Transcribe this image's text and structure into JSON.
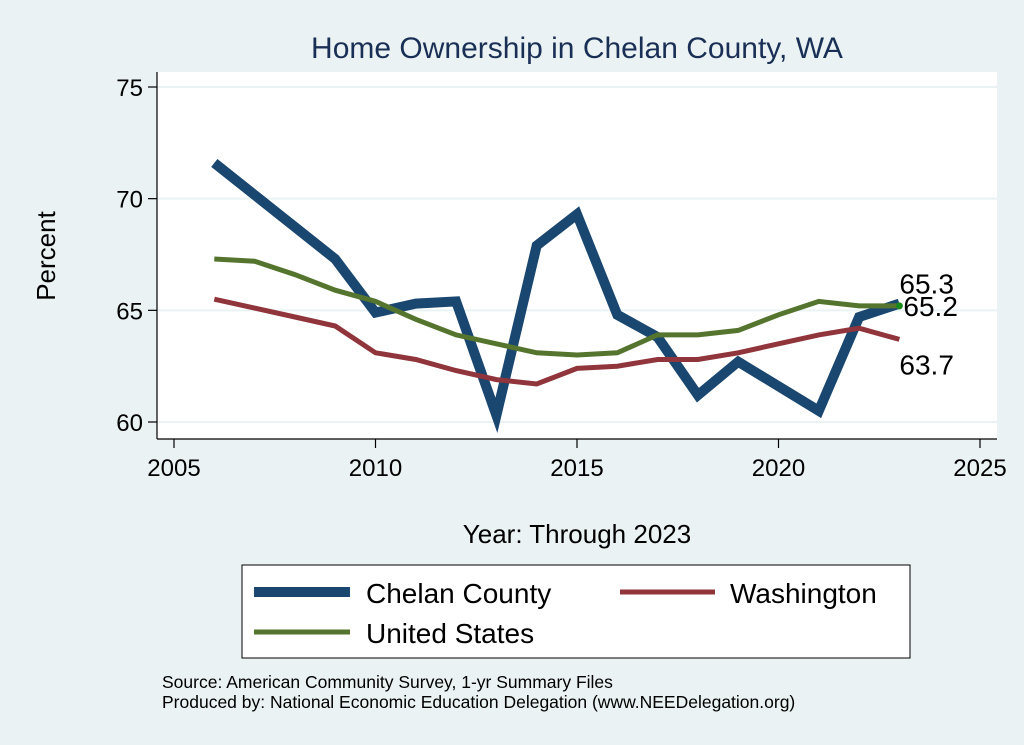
{
  "chart_data": {
    "type": "line",
    "title": "Home Ownership in Chelan County, WA",
    "xlabel": "Year: Through 2023",
    "ylabel": "Percent",
    "xlim": [
      2005,
      2025
    ],
    "ylim": [
      60,
      75
    ],
    "xticks": [
      2005,
      2010,
      2015,
      2020,
      2025
    ],
    "yticks": [
      60,
      65,
      70,
      75
    ],
    "xtick_labels": [
      "2005",
      "2010",
      "2015",
      "2020",
      "2025"
    ],
    "ytick_labels": [
      "60",
      "65",
      "70",
      "75"
    ],
    "grid": true,
    "legend_position": "bottom",
    "series": [
      {
        "name": "Chelan County",
        "color": "#1a476f",
        "x": [
          2006,
          2009,
          2010,
          2011,
          2012,
          2013,
          2014,
          2015,
          2016,
          2017,
          2018,
          2019,
          2021,
          2022,
          2023
        ],
        "values": [
          71.6,
          67.3,
          64.9,
          65.3,
          65.4,
          60.3,
          67.9,
          69.3,
          64.8,
          63.8,
          61.2,
          62.7,
          60.5,
          64.7,
          65.3
        ],
        "end_label": "65.3"
      },
      {
        "name": "Washington",
        "color": "#90353b",
        "x": [
          2006,
          2007,
          2008,
          2009,
          2010,
          2011,
          2012,
          2013,
          2014,
          2015,
          2016,
          2017,
          2018,
          2019,
          2020,
          2021,
          2022,
          2023
        ],
        "values": [
          65.5,
          65.1,
          64.7,
          64.3,
          63.1,
          62.8,
          62.3,
          61.9,
          61.7,
          62.4,
          62.5,
          62.8,
          62.8,
          63.1,
          63.5,
          63.9,
          64.2,
          63.7
        ],
        "end_label": "63.7"
      },
      {
        "name": "United States",
        "color": "#55752f",
        "x": [
          2006,
          2007,
          2008,
          2009,
          2010,
          2011,
          2012,
          2013,
          2014,
          2015,
          2016,
          2017,
          2018,
          2019,
          2020,
          2021,
          2022,
          2023
        ],
        "values": [
          67.3,
          67.2,
          66.6,
          65.9,
          65.4,
          64.6,
          63.9,
          63.5,
          63.1,
          63.0,
          63.1,
          63.9,
          63.9,
          64.1,
          64.8,
          65.4,
          65.2,
          65.2
        ],
        "end_label": "65.2"
      }
    ],
    "legend": [
      {
        "label": "Chelan County",
        "series": 0
      },
      {
        "label": "Washington",
        "series": 1
      },
      {
        "label": "United States",
        "series": 2
      }
    ],
    "notes": [
      "Source: American Community Survey, 1-yr Summary Files",
      "Produced by: National Economic Education Delegation (www.NEEDelegation.org)"
    ]
  },
  "colors": {
    "background": "#eaf2f3",
    "plot_background": "#ffffff",
    "gridline": "#eaf2f3",
    "title": "#1a2f55",
    "end_marker": "#1a8a1a"
  }
}
